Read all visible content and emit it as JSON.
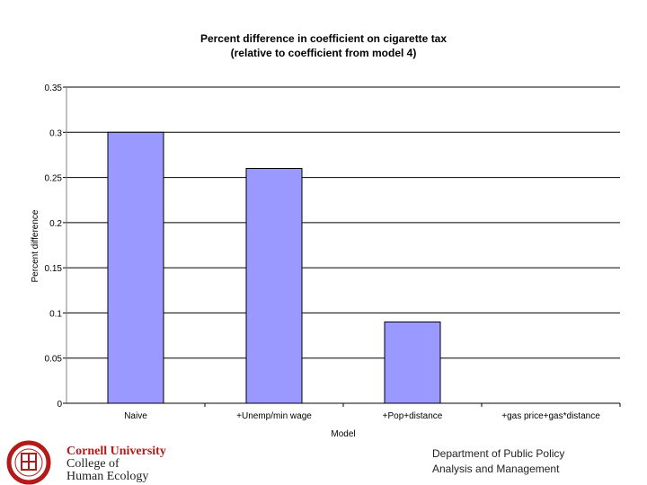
{
  "chart_data": {
    "type": "bar",
    "title": "Percent difference in coefficient on cigarette tax",
    "subtitle": "(relative to coefficient from model 4)",
    "xlabel": "Model",
    "ylabel": "Percent difference",
    "categories": [
      "Naive",
      "+Unemp/min wage",
      "+Pop+distance",
      "+gas price+gas*distance"
    ],
    "values": [
      0.3,
      0.26,
      0.09,
      0.0
    ],
    "ylim": [
      0,
      0.35
    ],
    "yticks": [
      0,
      0.05,
      0.1,
      0.15,
      0.2,
      0.25,
      0.3,
      0.35
    ],
    "ytick_labels": [
      "0",
      "0.05",
      "0.1",
      "0.15",
      "0.2",
      "0.25",
      "0.3",
      "0.35"
    ],
    "grid": "horizontal",
    "bar_color": "#9999ff"
  },
  "footer": {
    "logo": {
      "line1": "Cornell University",
      "line2": "College of",
      "line3": "Human Ecology",
      "seal_icon": "cornell-seal-icon"
    },
    "department": {
      "line1": "Department of Public Policy",
      "line2": "Analysis and Management"
    }
  }
}
